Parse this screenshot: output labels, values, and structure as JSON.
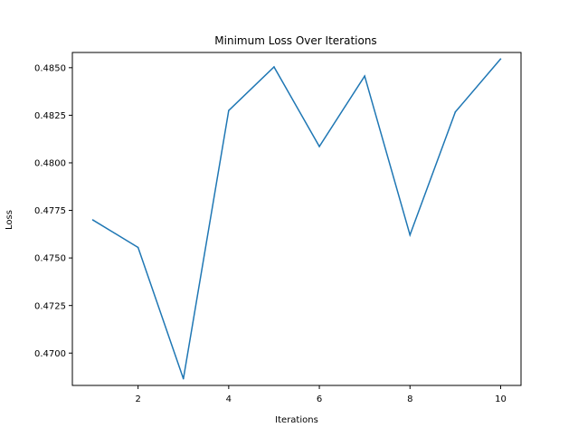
{
  "chart_data": {
    "type": "line",
    "title": "Minimum Loss Over Iterations",
    "xlabel": "Iterations",
    "ylabel": "Loss",
    "x": [
      1,
      2,
      3,
      4,
      5,
      6,
      7,
      8,
      9,
      10
    ],
    "series": [
      {
        "values": [
          0.477,
          0.47555,
          0.46865,
          0.48275,
          0.48504,
          0.48086,
          0.48456,
          0.47621,
          0.48267,
          0.48546
        ],
        "color": "#1f77b4"
      }
    ],
    "xlim": [
      0.55,
      10.45
    ],
    "ylim": [
      0.4683,
      0.4858
    ],
    "xticks": [
      2,
      4,
      6,
      8,
      10
    ],
    "xtick_labels": [
      "2",
      "4",
      "6",
      "8",
      "10"
    ],
    "yticks": [
      0.47,
      0.4725,
      0.475,
      0.4775,
      0.48,
      0.4825,
      0.485
    ],
    "ytick_labels": [
      "0.4700",
      "0.4725",
      "0.4750",
      "0.4775",
      "0.4800",
      "0.4825",
      "0.4850"
    ],
    "grid": false,
    "legend": "none"
  }
}
